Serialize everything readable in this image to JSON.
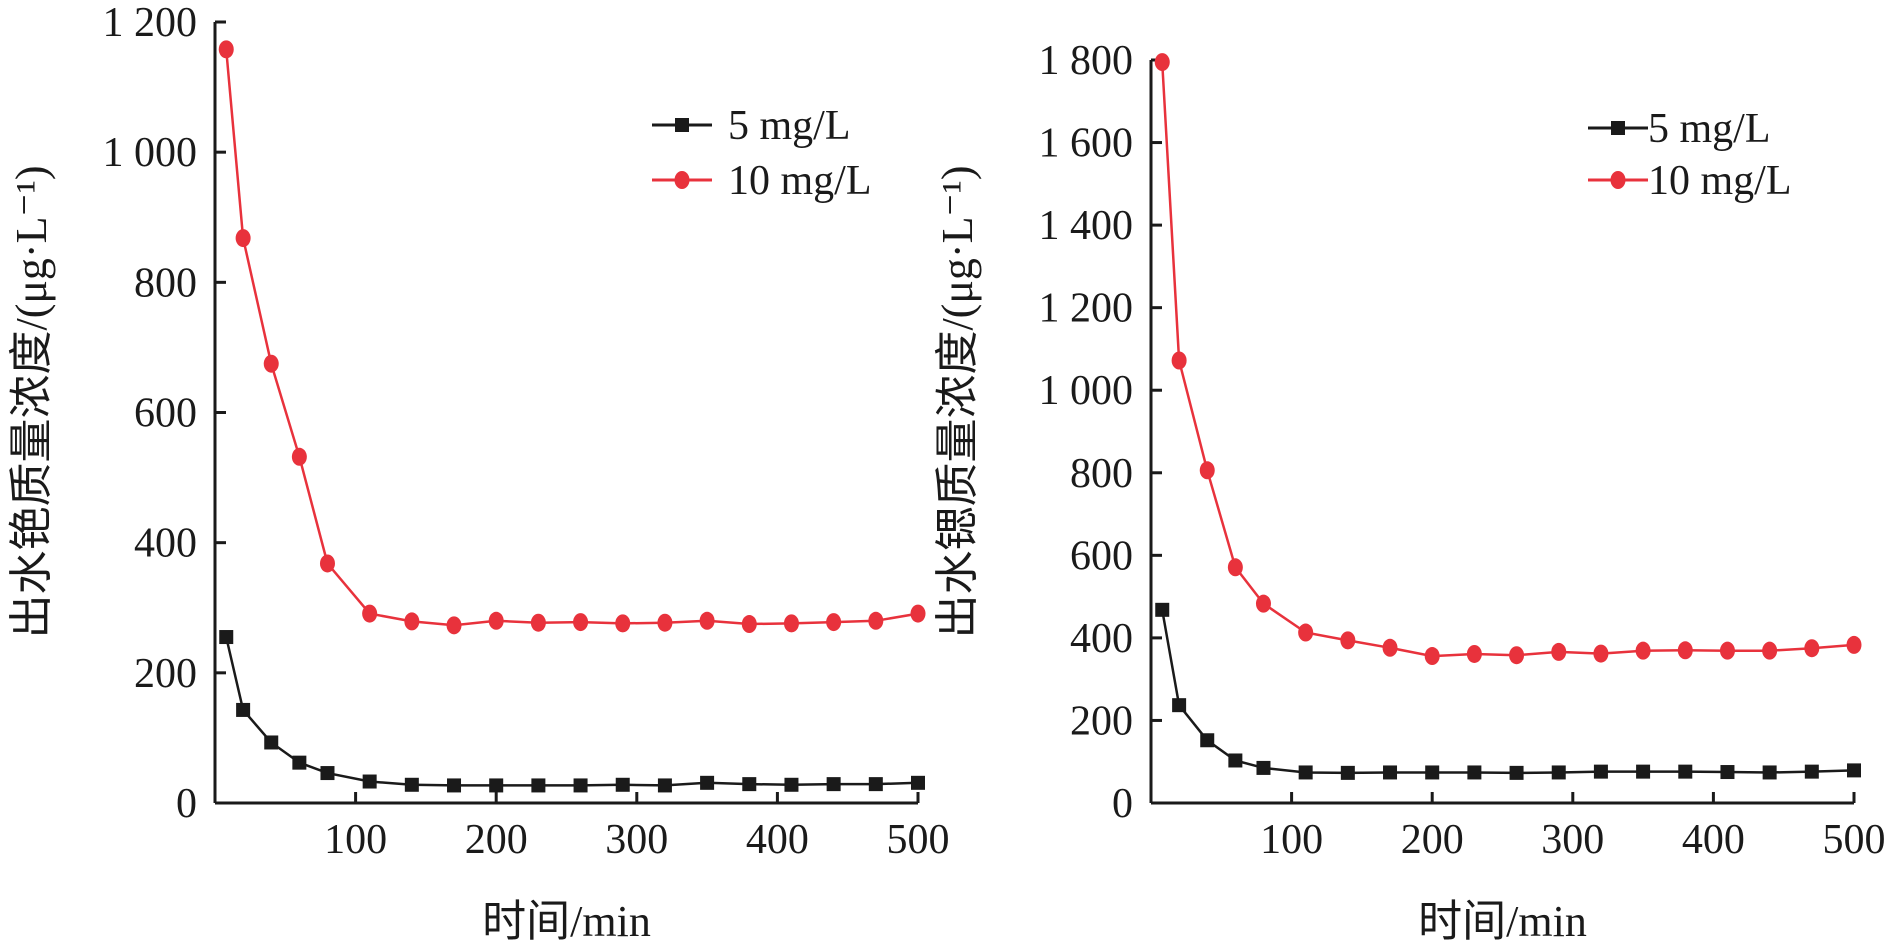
{
  "chart_data": [
    {
      "type": "line",
      "title": "",
      "xlabel": "时间/min",
      "ylabel": "出水铯质量浓度/(μg·L⁻¹)",
      "xlim": [
        0,
        500
      ],
      "ylim": [
        0,
        1200
      ],
      "xticks": [
        100,
        200,
        300,
        400,
        500
      ],
      "xtick_labels": [
        "100",
        "200",
        "300",
        "400",
        "500"
      ],
      "yticks": [
        0,
        200,
        400,
        600,
        800,
        1000,
        1200
      ],
      "ytick_labels": [
        "0",
        "200",
        "400",
        "600",
        "800",
        "1 000",
        "1 200"
      ],
      "grid": false,
      "legend_position": "top-right",
      "series": [
        {
          "name": "5 mg/L",
          "color": "#1a1a1a",
          "marker": "square",
          "x": [
            8,
            20,
            40,
            60,
            80,
            110,
            140,
            170,
            200,
            230,
            260,
            290,
            320,
            350,
            380,
            410,
            440,
            470,
            500
          ],
          "y": [
            255,
            143,
            93,
            62,
            46,
            33,
            28,
            27,
            27,
            27,
            27,
            28,
            27,
            31,
            29,
            28,
            29,
            29,
            31
          ]
        },
        {
          "name": "10 mg/L",
          "color": "#e8323c",
          "marker": "circle",
          "x": [
            8,
            20,
            40,
            60,
            80,
            110,
            140,
            170,
            200,
            230,
            260,
            290,
            320,
            350,
            380,
            410,
            440,
            470,
            500
          ],
          "y": [
            1158,
            868,
            675,
            532,
            368,
            291,
            279,
            273,
            280,
            277,
            278,
            276,
            277,
            280,
            275,
            276,
            278,
            280,
            291
          ]
        }
      ]
    },
    {
      "type": "line",
      "title": "",
      "xlabel": "时间/min",
      "ylabel": "出水锶质量浓度/(μg·L⁻¹)",
      "xlim": [
        0,
        500
      ],
      "ylim": [
        0,
        1800
      ],
      "xticks": [
        100,
        200,
        300,
        400,
        500
      ],
      "xtick_labels": [
        "100",
        "200",
        "300",
        "400",
        "500"
      ],
      "yticks": [
        0,
        200,
        400,
        600,
        800,
        1000,
        1200,
        1400,
        1600,
        1800
      ],
      "ytick_labels": [
        "0",
        "200",
        "400",
        "600",
        "800",
        "1 000",
        "1 200",
        "1 400",
        "1 600",
        "1 800"
      ],
      "grid": false,
      "legend_position": "top-right",
      "series": [
        {
          "name": "5 mg/L",
          "color": "#1a1a1a",
          "marker": "square",
          "x": [
            8,
            20,
            40,
            60,
            80,
            110,
            140,
            170,
            200,
            230,
            260,
            290,
            320,
            350,
            380,
            410,
            440,
            470,
            500
          ],
          "y": [
            468,
            237,
            152,
            103,
            85,
            74,
            73,
            74,
            74,
            74,
            73,
            74,
            76,
            76,
            76,
            75,
            74,
            76,
            79
          ]
        },
        {
          "name": "10 mg/L",
          "color": "#e8323c",
          "marker": "circle",
          "x": [
            8,
            20,
            40,
            60,
            80,
            110,
            140,
            170,
            200,
            230,
            260,
            290,
            320,
            350,
            380,
            410,
            440,
            470,
            500
          ],
          "y": [
            1795,
            1072,
            806,
            571,
            483,
            413,
            394,
            376,
            356,
            361,
            358,
            366,
            362,
            369,
            370,
            369,
            369,
            375,
            383
          ]
        }
      ]
    }
  ]
}
